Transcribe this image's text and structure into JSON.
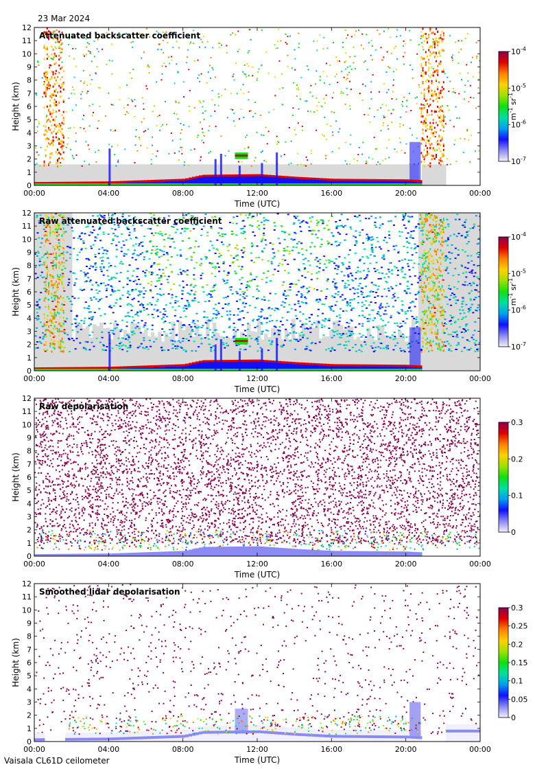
{
  "header": {
    "date": "23 Mar 2024"
  },
  "footer": {
    "instrument": "Vaisala CL61D ceilometer"
  },
  "colors": {
    "colormap": [
      "#f0f0fc",
      "#8a8af2",
      "#1010ff",
      "#00a0f0",
      "#00e0a0",
      "#10e010",
      "#a0e000",
      "#ffd000",
      "#ff8000",
      "#e00000",
      "#8b0050"
    ],
    "no_signal_gray": "#d9d9d9"
  },
  "chart_data": [
    {
      "type": "heatmap",
      "title": "Attenuated backscatter coefficient",
      "xlabel": "Time (UTC)",
      "ylabel": "Height (km)",
      "x_ticks": [
        "00:00",
        "04:00",
        "08:00",
        "12:00",
        "16:00",
        "20:00",
        "00:00"
      ],
      "y_ticks": [
        0,
        1,
        2,
        3,
        4,
        5,
        6,
        7,
        8,
        9,
        10,
        11,
        12
      ],
      "ylim": [
        0,
        12
      ],
      "xlim_hours": [
        0,
        24
      ],
      "colorbar": {
        "scale": "log",
        "ticks": [
          "10",
          "10",
          "10",
          "10"
        ],
        "exponents": [
          "-7",
          "-6",
          "-5",
          "-4"
        ],
        "unit": "m",
        "unit_exp": "-1",
        "unit2": "sr",
        "unit2_exp": "-1"
      },
      "boundary_layer_top_km": [
        [
          0,
          0.15
        ],
        [
          4,
          0.2
        ],
        [
          8,
          0.4
        ],
        [
          9,
          0.7
        ],
        [
          12,
          0.75
        ],
        [
          14,
          0.55
        ],
        [
          16,
          0.4
        ],
        [
          20,
          0.35
        ],
        [
          20.6,
          0.3
        ]
      ],
      "cloud_layers": [
        {
          "start_h": 10.8,
          "end_h": 11.5,
          "base_km": 2.0,
          "top_km": 2.5
        }
      ],
      "precipitation_periods_h": [
        [
          0.5,
          1.6
        ],
        [
          20.8,
          22.0
        ]
      ]
    },
    {
      "type": "heatmap",
      "title": "Raw attenuated backscatter coefficient",
      "xlabel": "Time (UTC)",
      "ylabel": "Height (km)",
      "x_ticks": [
        "00:00",
        "04:00",
        "08:00",
        "12:00",
        "16:00",
        "20:00",
        "00:00"
      ],
      "y_ticks": [
        0,
        1,
        2,
        3,
        4,
        5,
        6,
        7,
        8,
        9,
        10,
        11,
        12
      ],
      "ylim": [
        0,
        12
      ],
      "xlim_hours": [
        0,
        24
      ],
      "colorbar": {
        "scale": "log",
        "ticks": [
          "10",
          "10",
          "10",
          "10"
        ],
        "exponents": [
          "-7",
          "-6",
          "-5",
          "-4"
        ],
        "unit": "m",
        "unit_exp": "-1",
        "unit2": "sr",
        "unit2_exp": "-1"
      },
      "boundary_layer_top_km": [
        [
          0,
          0.15
        ],
        [
          4,
          0.2
        ],
        [
          8,
          0.4
        ],
        [
          9,
          0.7
        ],
        [
          12,
          0.75
        ],
        [
          14,
          0.55
        ],
        [
          16,
          0.4
        ],
        [
          20,
          0.35
        ],
        [
          20.6,
          0.3
        ]
      ],
      "cloud_layers": [
        {
          "start_h": 10.8,
          "end_h": 11.5,
          "base_km": 2.0,
          "top_km": 2.5
        }
      ],
      "precipitation_periods_h": [
        [
          0.5,
          1.6
        ],
        [
          20.8,
          22.0
        ]
      ]
    },
    {
      "type": "heatmap",
      "title": "Raw depolarisation",
      "xlabel": "Time (UTC)",
      "ylabel": "Height (km)",
      "x_ticks": [
        "00:00",
        "04:00",
        "08:00",
        "12:00",
        "16:00",
        "20:00",
        "00:00"
      ],
      "y_ticks": [
        0,
        1,
        2,
        3,
        4,
        5,
        6,
        7,
        8,
        9,
        10,
        11,
        12
      ],
      "ylim": [
        0,
        12
      ],
      "xlim_hours": [
        0,
        24
      ],
      "colorbar": {
        "scale": "linear",
        "range": [
          0,
          0.3
        ],
        "ticks": [
          "0",
          "0.1",
          "0.2",
          "0.3"
        ]
      }
    },
    {
      "type": "heatmap",
      "title": "Smoothed lidar depolarisation",
      "xlabel": "Time (UTC)",
      "ylabel": "Height (km)",
      "x_ticks": [
        "00:00",
        "04:00",
        "08:00",
        "12:00",
        "16:00",
        "20:00",
        "00:00"
      ],
      "y_ticks": [
        0,
        1,
        2,
        3,
        4,
        5,
        6,
        7,
        8,
        9,
        10,
        11,
        12
      ],
      "ylim": [
        0,
        12
      ],
      "xlim_hours": [
        0,
        24
      ],
      "colorbar": {
        "scale": "linear",
        "range": [
          0,
          0.3
        ],
        "ticks": [
          "0",
          "0.05",
          "0.1",
          "0.15",
          "0.2",
          "0.25",
          "0.3"
        ]
      }
    }
  ]
}
